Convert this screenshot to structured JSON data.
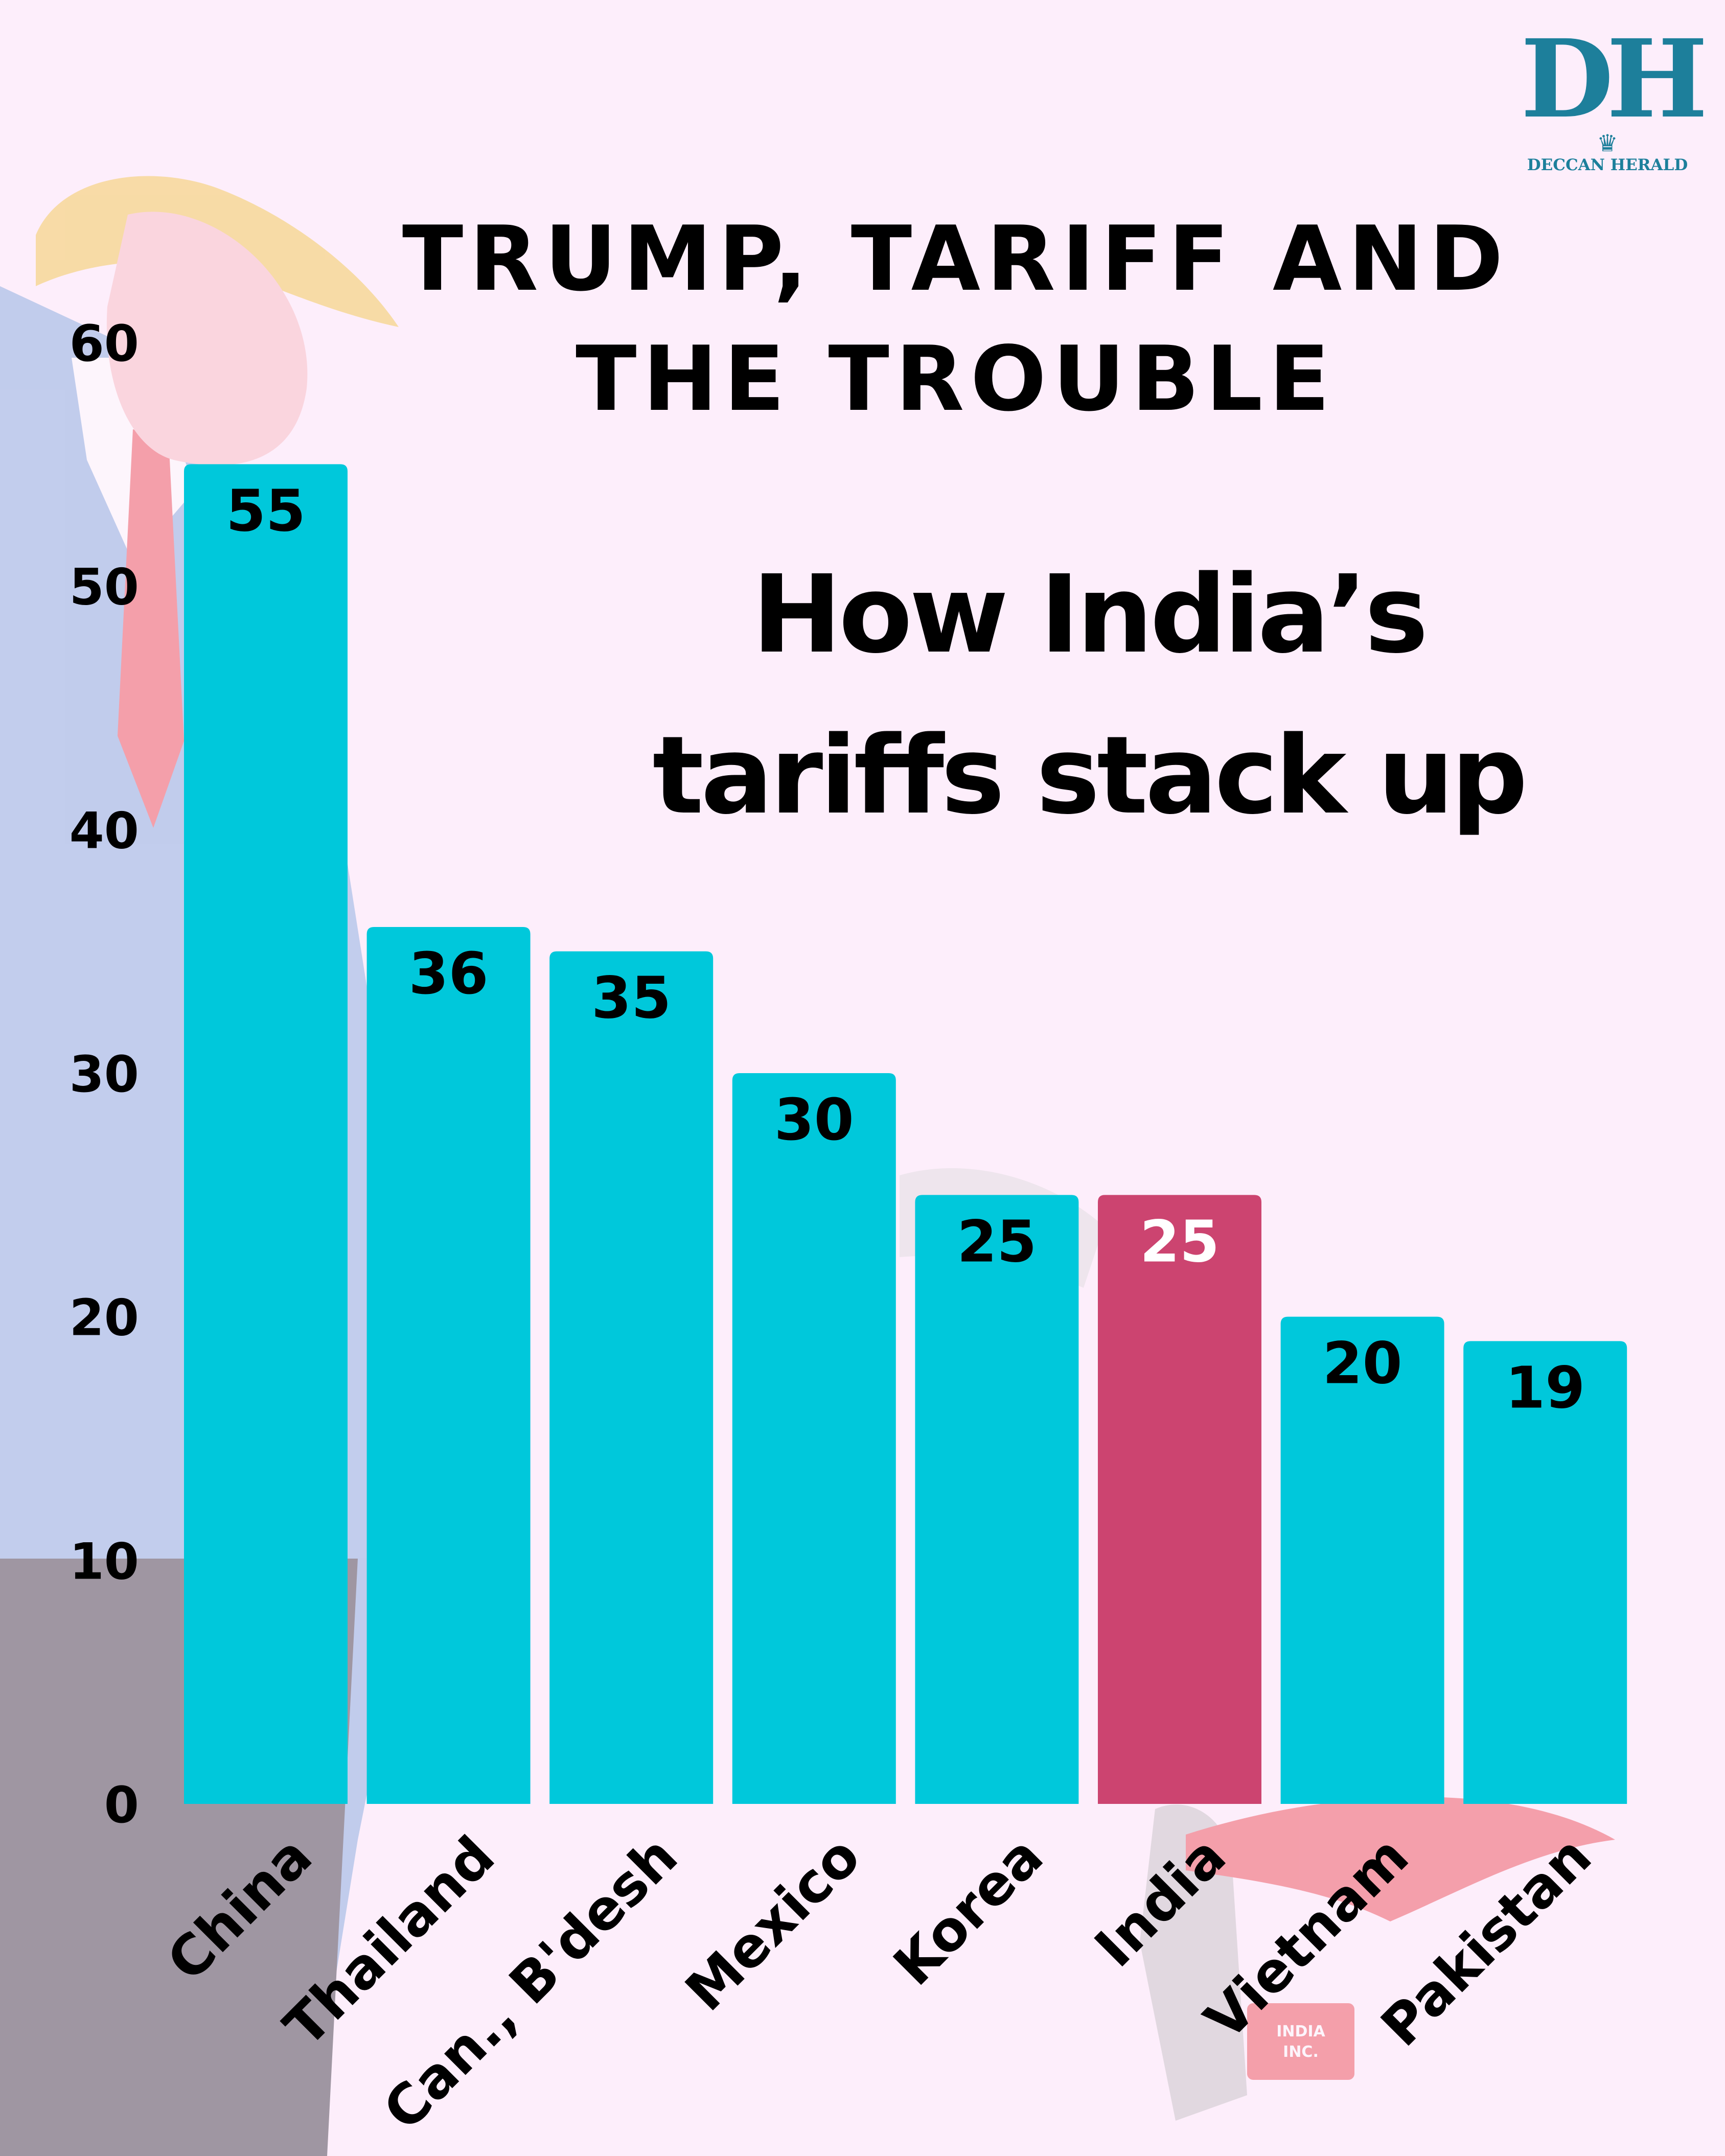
{
  "brand": {
    "mark": "DH",
    "name": "DECCAN HERALD"
  },
  "header": {
    "title_line1": "TRUMP, TARIFF AND",
    "title_line2": "THE TROUBLE",
    "subtitle_line1": "How India’s",
    "subtitle_line2": "tariffs stack up"
  },
  "illustration": {
    "briefcase_line1": "INDIA",
    "briefcase_line2": "INC."
  },
  "colors": {
    "background": "#fdeefb",
    "bar": "#00c8db",
    "highlight": "#cc4470",
    "label_dark": "#000000",
    "label_light": "#ffffff"
  },
  "chart_data": {
    "type": "bar",
    "title": "",
    "xlabel": "",
    "ylabel": "",
    "ylim": [
      0,
      60
    ],
    "yticks": [
      0,
      10,
      20,
      30,
      40,
      50,
      60
    ],
    "grid": false,
    "legend": "none",
    "categories": [
      "China",
      "Thailand",
      "Can., B'desh",
      "Mexico",
      "Korea",
      "India",
      "Vietnam",
      "Pakistan"
    ],
    "values": [
      55,
      36,
      35,
      30,
      25,
      25,
      20,
      19
    ],
    "highlight_category": "India"
  }
}
